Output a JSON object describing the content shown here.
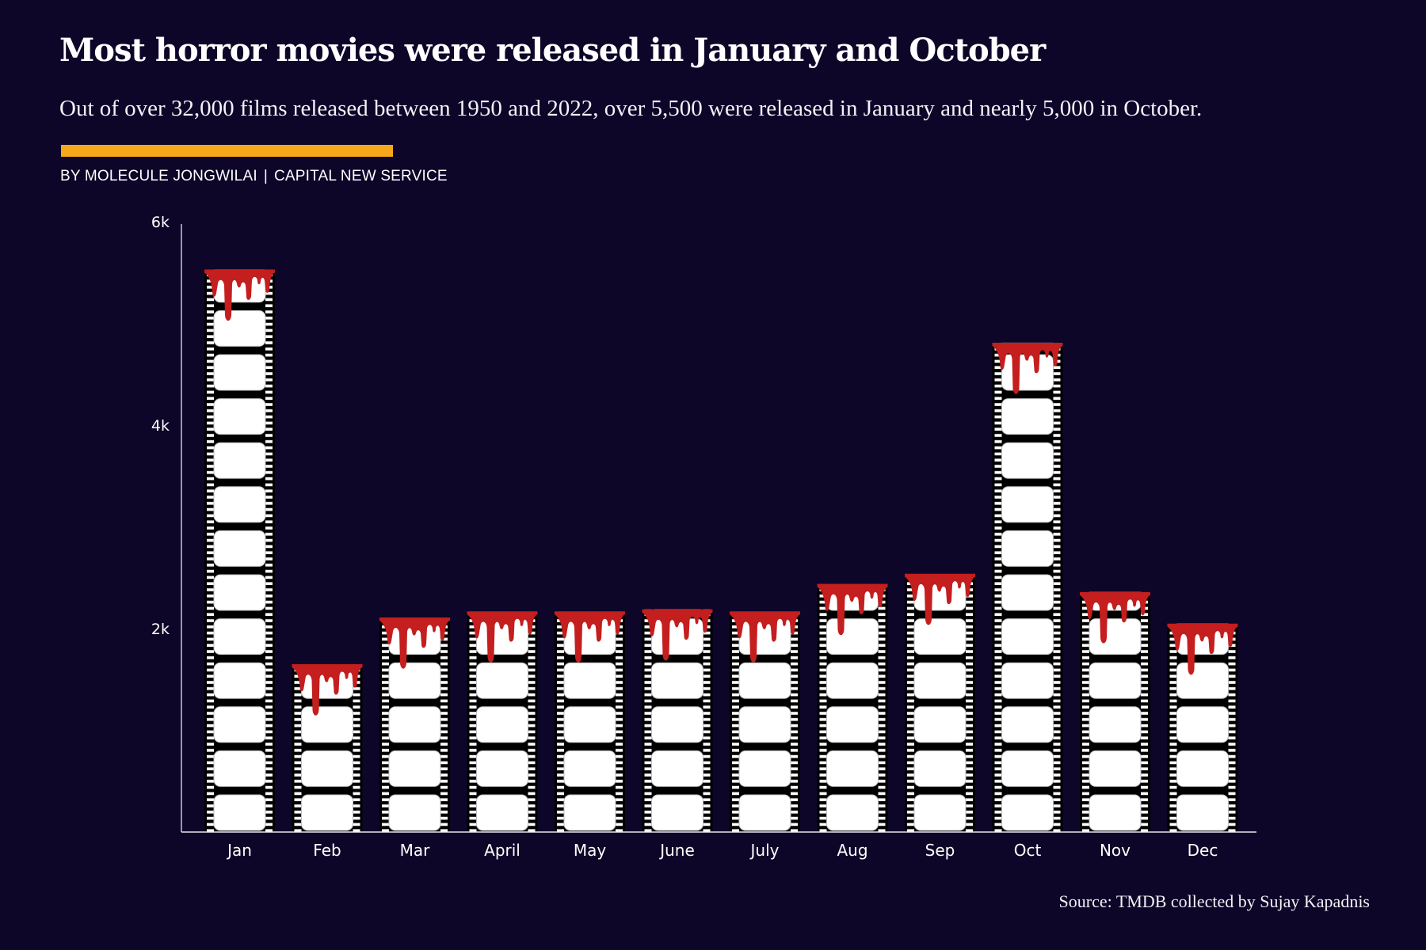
{
  "header": {
    "title": "Most horror movies were released in January and October",
    "subtitle": "Out of over 32,000 films released between 1950 and 2022, over 5,500 were released in January and nearly 5,000 in October.",
    "byline_author": "BY MOLECULE JONGWILAI",
    "byline_separator": "|",
    "byline_org": "CAPITAL NEW SERVICE"
  },
  "footer": {
    "source": "Source: TMDB collected by Sujay Kapadnis"
  },
  "colors": {
    "background": "#0E0629",
    "accent": "#F6A81A",
    "film": "#000000",
    "frame": "#FFFFFF",
    "blood": "#C41E1E",
    "axis": "#C8C6D0"
  },
  "chart_data": {
    "type": "bar",
    "title": "Most horror movies were released in January and October",
    "xlabel": "",
    "ylabel": "",
    "categories": [
      "Jan",
      "Feb",
      "Mar",
      "April",
      "May",
      "June",
      "July",
      "Aug",
      "Sep",
      "Oct",
      "Nov",
      "Dec"
    ],
    "values": [
      5530,
      1650,
      2110,
      2170,
      2170,
      2190,
      2170,
      2440,
      2540,
      4810,
      2360,
      2050
    ],
    "ylim": [
      0,
      6000
    ],
    "yticks": [
      {
        "value": 2000,
        "label": "2k"
      },
      {
        "value": 4000,
        "label": "4k"
      },
      {
        "value": 6000,
        "label": "6k"
      }
    ],
    "grid": false,
    "legend": "none",
    "bar_style": "film-strip with dripping blood top"
  }
}
